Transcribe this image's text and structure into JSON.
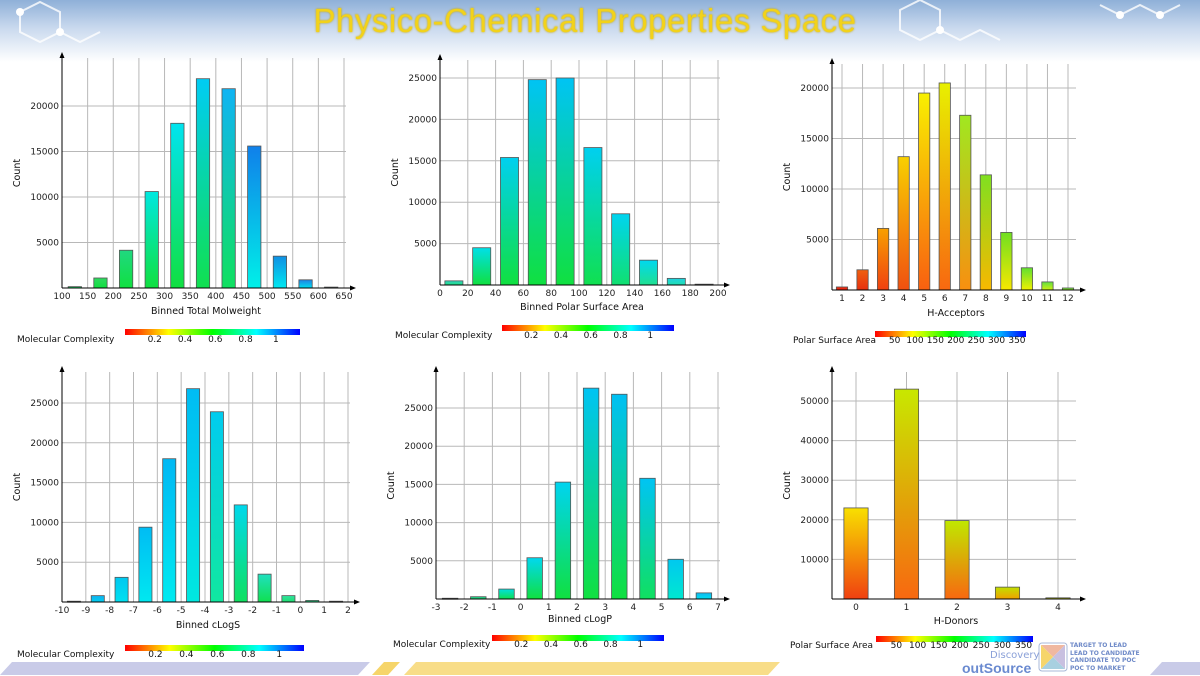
{
  "title": "Physico-Chemical Properties Space",
  "footer": {
    "brand_top": "Discovery",
    "brand": "outSource",
    "tagline": [
      "Target to Lead",
      "Lead to Candidate",
      "Candidate to Poc",
      "Poc to Market"
    ]
  },
  "chart_data": [
    {
      "type": "bar",
      "xlabel": "Binned Total Molweight",
      "ylabel": "Count",
      "xlim": [
        100,
        650
      ],
      "ylim": [
        0,
        25000
      ],
      "xticks": [
        "100",
        "150",
        "200",
        "250",
        "300",
        "350",
        "400",
        "450",
        "500",
        "550",
        "600",
        "650"
      ],
      "xtick_values": [
        100,
        150,
        200,
        250,
        300,
        350,
        400,
        450,
        500,
        550,
        600,
        650
      ],
      "yticks": [
        "5000",
        "10000",
        "15000",
        "20000"
      ],
      "ytick_values": [
        5000,
        10000,
        15000,
        20000
      ],
      "grid": true,
      "x": [
        125,
        175,
        225,
        275,
        325,
        375,
        425,
        475,
        525,
        575,
        625
      ],
      "values": [
        150,
        1100,
        4150,
        10600,
        18100,
        23000,
        21900,
        15600,
        3500,
        900,
        100
      ],
      "bar_top_colors": [
        "#20d080",
        "#30d860",
        "#20d880",
        "#00e8e0",
        "#00e4f0",
        "#00ccf4",
        "#10b4f4",
        "#1080ea",
        "#1090e4",
        "#2080e4",
        "#40a8e8"
      ],
      "bar_bottom_colors": [
        "#10e040",
        "#10e040",
        "#10e040",
        "#10e040",
        "#10e040",
        "#10e050",
        "#10e060",
        "#00f0e8",
        "#00e8f0",
        "#00e0f0",
        "#20c8f0"
      ],
      "colorbar": {
        "label": "Molecular Complexity",
        "ticks": [
          "0.2",
          "0.4",
          "0.6",
          "0.8",
          "1"
        ],
        "colors": [
          "#ff0000",
          "#ffff00",
          "#00ff00",
          "#00ffff",
          "#0000ff"
        ]
      }
    },
    {
      "type": "bar",
      "xlabel": "Binned Polar Surface Area",
      "ylabel": "Count",
      "xlim": [
        0,
        200
      ],
      "ylim": [
        0,
        27000
      ],
      "xticks": [
        "0",
        "20",
        "40",
        "60",
        "80",
        "100",
        "120",
        "140",
        "160",
        "180",
        "200"
      ],
      "xtick_values": [
        0,
        20,
        40,
        60,
        80,
        100,
        120,
        140,
        160,
        180,
        200
      ],
      "yticks": [
        "5000",
        "10000",
        "15000",
        "20000",
        "25000"
      ],
      "ytick_values": [
        5000,
        10000,
        15000,
        20000,
        25000
      ],
      "grid": true,
      "x": [
        10,
        30,
        50,
        70,
        90,
        110,
        130,
        150,
        170,
        190
      ],
      "values": [
        500,
        4500,
        15400,
        24800,
        25000,
        16600,
        8600,
        3000,
        800,
        100
      ],
      "bar_top_colors": [
        "#30d0c0",
        "#00e0e8",
        "#00d0f0",
        "#00c4f4",
        "#00c4f4",
        "#00d0f0",
        "#00d4f0",
        "#00d8f0",
        "#20d0e0",
        "#40c0e0"
      ],
      "bar_bottom_colors": [
        "#20e080",
        "#10e040",
        "#10e040",
        "#10e040",
        "#10e040",
        "#10e050",
        "#10e070",
        "#20e090",
        "#20e0b0",
        "#30d0c0"
      ],
      "colorbar": {
        "label": "Molecular Complexity",
        "ticks": [
          "0.2",
          "0.4",
          "0.6",
          "0.8",
          "1"
        ],
        "colors": [
          "#ff0000",
          "#ffff00",
          "#00ff00",
          "#00ffff",
          "#0000ff"
        ]
      }
    },
    {
      "type": "bar",
      "xlabel": "H-Acceptors",
      "ylabel": "Count",
      "xlim": [
        0.5,
        12.5
      ],
      "ylim": [
        0,
        22000
      ],
      "xticks": [
        "1",
        "2",
        "3",
        "4",
        "5",
        "6",
        "7",
        "8",
        "9",
        "10",
        "11",
        "12"
      ],
      "xtick_values": [
        1,
        2,
        3,
        4,
        5,
        6,
        7,
        8,
        9,
        10,
        11,
        12
      ],
      "yticks": [
        "5000",
        "10000",
        "15000",
        "20000"
      ],
      "ytick_values": [
        5000,
        10000,
        15000,
        20000
      ],
      "grid": true,
      "x": [
        1,
        2,
        3,
        4,
        5,
        6,
        7,
        8,
        9,
        10,
        11,
        12
      ],
      "values": [
        300,
        2000,
        6100,
        13200,
        19500,
        20500,
        17300,
        11400,
        5700,
        2200,
        800,
        200
      ],
      "bar_top_colors": [
        "#f03010",
        "#f06010",
        "#f8a000",
        "#f8d000",
        "#f8f000",
        "#e8f000",
        "#a0e820",
        "#80e020",
        "#70e020",
        "#60e030",
        "#60e040",
        "#50e040"
      ],
      "bar_bottom_colors": [
        "#e82010",
        "#e83010",
        "#f04010",
        "#f05010",
        "#f86010",
        "#f86810",
        "#f89010",
        "#f8b800",
        "#f8e800",
        "#f0f000",
        "#d0f010",
        "#b0f020"
      ],
      "colorbar": {
        "label": "Polar Surface Area",
        "ticks": [
          "50",
          "100",
          "150",
          "200",
          "250",
          "300",
          "350"
        ],
        "colors": [
          "#ff0000",
          "#ffff00",
          "#00ff00",
          "#00ffff",
          "#0000ff"
        ]
      }
    },
    {
      "type": "bar",
      "xlabel": "Binned cLogS",
      "ylabel": "Count",
      "xlim": [
        -10,
        2
      ],
      "ylim": [
        0,
        29000
      ],
      "xticks": [
        "-10",
        "-9",
        "-8",
        "-7",
        "-6",
        "-5",
        "-4",
        "-3",
        "-2",
        "-1",
        "0",
        "1",
        "2"
      ],
      "xtick_values": [
        -10,
        -9,
        -8,
        -7,
        -6,
        -5,
        -4,
        -3,
        -2,
        -1,
        0,
        1,
        2
      ],
      "yticks": [
        "5000",
        "10000",
        "15000",
        "20000",
        "25000"
      ],
      "ytick_values": [
        5000,
        10000,
        15000,
        20000,
        25000
      ],
      "grid": true,
      "x": [
        -9.5,
        -8.5,
        -7.5,
        -6.5,
        -5.5,
        -4.5,
        -3.5,
        -2.5,
        -1.5,
        -0.5,
        0.5,
        1.5
      ],
      "values": [
        100,
        800,
        3100,
        9400,
        18000,
        26800,
        23900,
        12200,
        3500,
        800,
        200,
        100
      ],
      "bar_top_colors": [
        "#20a0f0",
        "#10b0f0",
        "#00c8f0",
        "#00bcf4",
        "#00b8f4",
        "#00bcf4",
        "#00ccf0",
        "#00d8ec",
        "#20e0c0",
        "#30e0a0",
        "#30e090",
        "#30e090"
      ],
      "bar_bottom_colors": [
        "#30b0f0",
        "#00d0f0",
        "#00e0f0",
        "#00e8f0",
        "#00eaf0",
        "#00e8e0",
        "#10e8a0",
        "#10e060",
        "#10e050",
        "#20e070",
        "#30e090",
        "#30e090"
      ],
      "colorbar": {
        "label": "Molecular Complexity",
        "ticks": [
          "0.2",
          "0.4",
          "0.6",
          "0.8",
          "1"
        ],
        "colors": [
          "#ff0000",
          "#ffff00",
          "#00ff00",
          "#00ffff",
          "#0000ff"
        ]
      }
    },
    {
      "type": "bar",
      "xlabel": "Binned cLogP",
      "ylabel": "Count",
      "xlim": [
        -3,
        7
      ],
      "ylim": [
        0,
        29000
      ],
      "xticks": [
        "-3",
        "-2",
        "-1",
        "0",
        "1",
        "2",
        "3",
        "4",
        "5",
        "6",
        "7"
      ],
      "xtick_values": [
        -3,
        -2,
        -1,
        0,
        1,
        2,
        3,
        4,
        5,
        6,
        7
      ],
      "yticks": [
        "5000",
        "10000",
        "15000",
        "20000",
        "25000"
      ],
      "ytick_values": [
        5000,
        10000,
        15000,
        20000,
        25000
      ],
      "grid": true,
      "x": [
        -2.5,
        -1.5,
        -0.5,
        0.5,
        1.5,
        2.5,
        3.5,
        4.5,
        5.5,
        6.5
      ],
      "values": [
        100,
        300,
        1300,
        5400,
        15300,
        27600,
        26800,
        15800,
        5200,
        800
      ],
      "bar_top_colors": [
        "#30c0a0",
        "#20d0a0",
        "#00e0e0",
        "#00d8f0",
        "#00d4f0",
        "#00c4f4",
        "#00c0f4",
        "#00c4f4",
        "#00c8f0",
        "#10b8f0"
      ],
      "bar_bottom_colors": [
        "#30d090",
        "#20e060",
        "#10e050",
        "#10e040",
        "#10e040",
        "#10e040",
        "#10e040",
        "#10e060",
        "#00e8d0",
        "#00e0f0"
      ],
      "colorbar": {
        "label": "Molecular Complexity",
        "ticks": [
          "0.2",
          "0.4",
          "0.6",
          "0.8",
          "1"
        ],
        "colors": [
          "#ff0000",
          "#ffff00",
          "#00ff00",
          "#00ffff",
          "#0000ff"
        ]
      }
    },
    {
      "type": "bar",
      "xlabel": "H-Donors",
      "ylabel": "Count",
      "xlim": [
        -0.5,
        4.5
      ],
      "ylim": [
        0,
        58000
      ],
      "xticks": [
        "0",
        "1",
        "2",
        "3",
        "4"
      ],
      "xtick_values": [
        0,
        1,
        2,
        3,
        4
      ],
      "yticks": [
        "10000",
        "20000",
        "30000",
        "40000",
        "50000"
      ],
      "ytick_values": [
        10000,
        20000,
        30000,
        40000,
        50000
      ],
      "grid": true,
      "x": [
        0,
        1,
        2,
        3,
        4
      ],
      "values": [
        23000,
        53000,
        19800,
        3000,
        300
      ],
      "bar_top_colors": [
        "#f8e000",
        "#c8e800",
        "#c0e800",
        "#c0e000",
        "#c0e000"
      ],
      "bar_bottom_colors": [
        "#f04010",
        "#f86810",
        "#f86810",
        "#f0a000",
        "#e0c000"
      ],
      "colorbar": {
        "label": "Polar Surface Area",
        "ticks": [
          "50",
          "100",
          "150",
          "200",
          "250",
          "300",
          "350"
        ],
        "colors": [
          "#ff0000",
          "#ffff00",
          "#00ff00",
          "#00ffff",
          "#0000ff"
        ]
      }
    }
  ]
}
